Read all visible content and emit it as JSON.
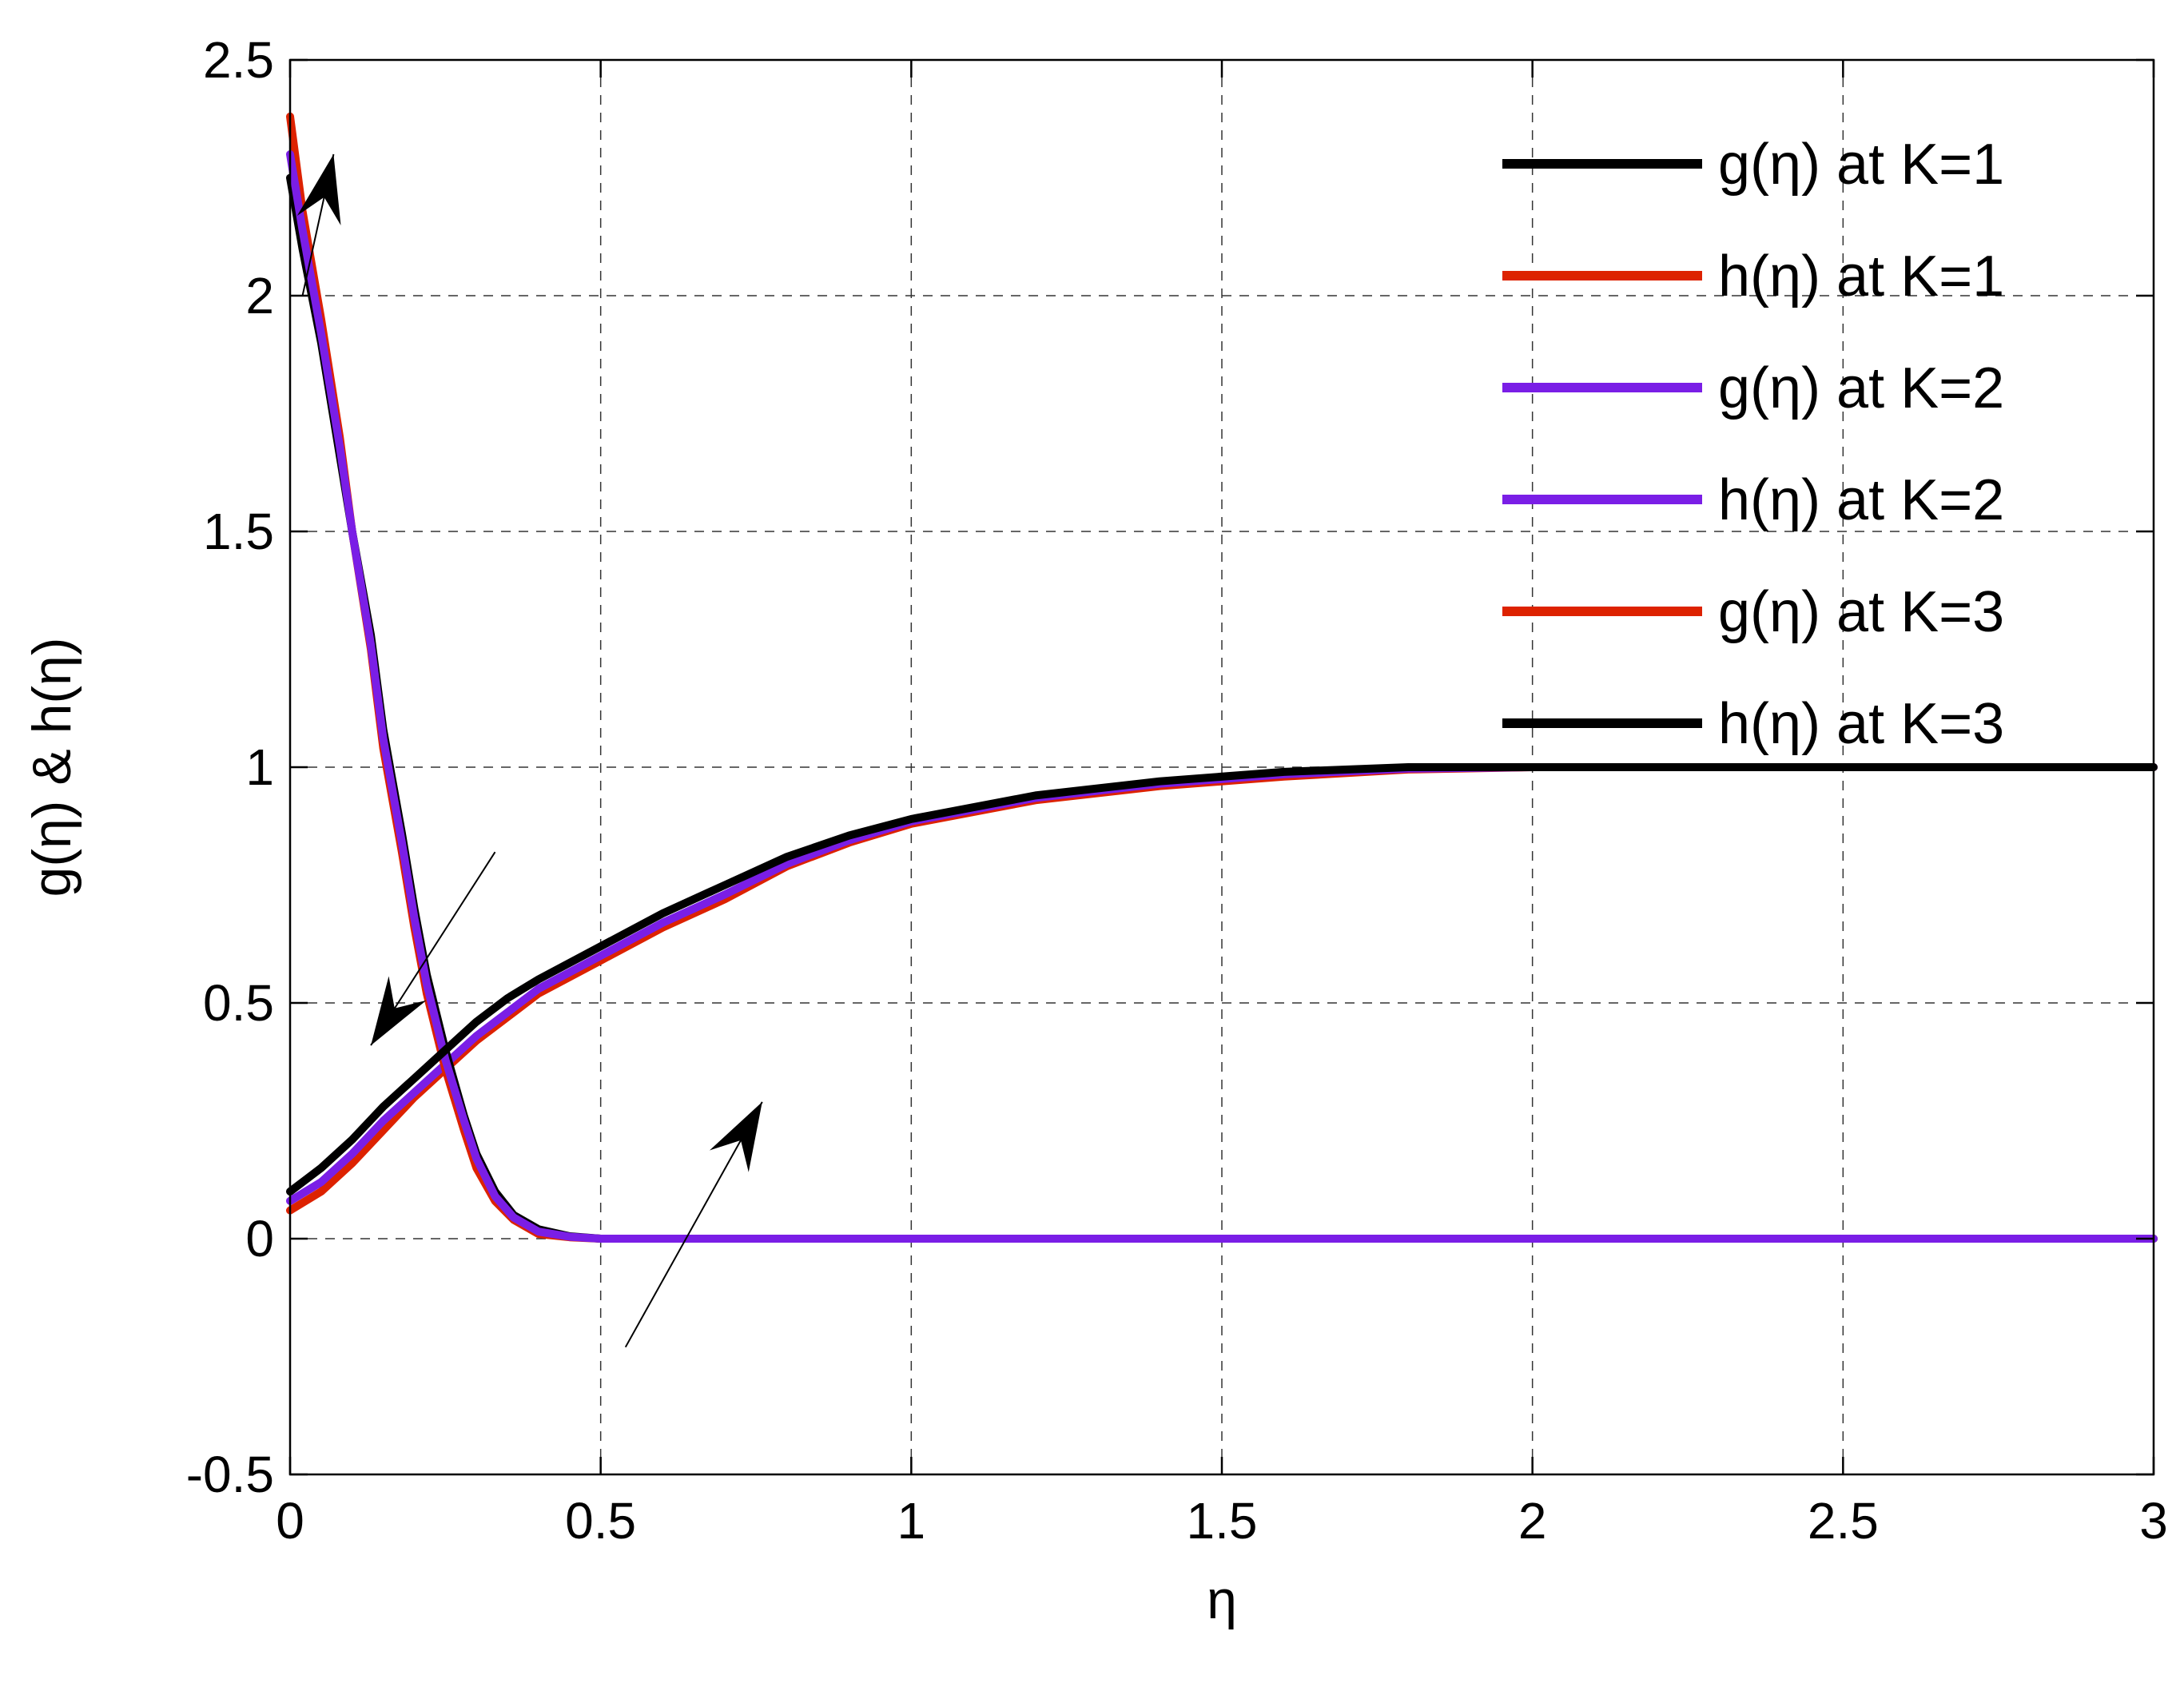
{
  "chart_data": {
    "type": "line",
    "xlabel": "η",
    "ylabel": "g(η) & h(η)",
    "xlim": [
      0,
      3
    ],
    "ylim": [
      -0.5,
      2.5
    ],
    "xticks": [
      0,
      0.5,
      1,
      1.5,
      2,
      2.5,
      3
    ],
    "yticks": [
      -0.5,
      0,
      0.5,
      1,
      1.5,
      2,
      2.5
    ],
    "xtick_labels": [
      "0",
      "0.5",
      "1",
      "1.5",
      "2",
      "2.5",
      "3"
    ],
    "ytick_labels": [
      "-0.5",
      "0",
      "0.5",
      "1",
      "1.5",
      "2",
      "2.5"
    ],
    "grid": true,
    "legend_position": "top-right",
    "series": [
      {
        "name": "g(η) at K=1",
        "color": "#000000",
        "x": [
          0,
          0.02,
          0.05,
          0.08,
          0.1,
          0.13,
          0.15,
          0.18,
          0.2,
          0.22,
          0.25,
          0.28,
          0.3,
          0.33,
          0.36,
          0.4,
          0.45,
          0.5,
          0.55,
          3
        ],
        "y": [
          2.25,
          2.1,
          1.9,
          1.66,
          1.5,
          1.28,
          1.08,
          0.86,
          0.7,
          0.56,
          0.4,
          0.26,
          0.18,
          0.1,
          0.05,
          0.02,
          0.005,
          0,
          0,
          0
        ]
      },
      {
        "name": "h(η) at K=1",
        "color": "#dd2200",
        "x": [
          0,
          0.05,
          0.1,
          0.15,
          0.2,
          0.25,
          0.3,
          0.35,
          0.4,
          0.5,
          0.6,
          0.7,
          0.8,
          0.9,
          1.0,
          1.2,
          1.4,
          1.6,
          1.8,
          2.0,
          3.0
        ],
        "y": [
          0.06,
          0.1,
          0.16,
          0.23,
          0.3,
          0.36,
          0.42,
          0.47,
          0.52,
          0.59,
          0.66,
          0.72,
          0.79,
          0.84,
          0.88,
          0.93,
          0.96,
          0.98,
          0.995,
          1.0,
          1.0
        ]
      },
      {
        "name": "g(η) at K=2",
        "color": "#7a1ee6",
        "x": [
          0,
          0.02,
          0.05,
          0.08,
          0.1,
          0.13,
          0.15,
          0.18,
          0.2,
          0.22,
          0.25,
          0.28,
          0.3,
          0.33,
          0.36,
          0.4,
          0.45,
          0.5,
          0.55,
          3
        ],
        "y": [
          2.3,
          2.14,
          1.92,
          1.68,
          1.5,
          1.26,
          1.06,
          0.84,
          0.68,
          0.54,
          0.38,
          0.25,
          0.17,
          0.09,
          0.045,
          0.015,
          0.004,
          0,
          0,
          0
        ]
      },
      {
        "name": "h(η) at K=2",
        "color": "#7a1ee6",
        "x": [
          0,
          0.05,
          0.1,
          0.15,
          0.2,
          0.25,
          0.3,
          0.35,
          0.4,
          0.5,
          0.6,
          0.7,
          0.8,
          0.9,
          1.0,
          1.2,
          1.4,
          1.6,
          1.8,
          2.0,
          3.0
        ],
        "y": [
          0.08,
          0.12,
          0.18,
          0.25,
          0.31,
          0.37,
          0.43,
          0.48,
          0.53,
          0.6,
          0.67,
          0.73,
          0.795,
          0.845,
          0.885,
          0.935,
          0.965,
          0.985,
          0.997,
          1.0,
          1.0
        ]
      },
      {
        "name": "g(η) at K=3",
        "color": "#dd2200",
        "x": [
          0,
          0.02,
          0.05,
          0.08,
          0.1,
          0.13,
          0.15,
          0.18,
          0.2,
          0.22,
          0.25,
          0.28,
          0.3,
          0.33,
          0.36,
          0.4,
          0.45,
          0.5,
          0.55,
          3
        ],
        "y": [
          2.38,
          2.18,
          1.95,
          1.7,
          1.5,
          1.25,
          1.04,
          0.82,
          0.66,
          0.52,
          0.36,
          0.23,
          0.15,
          0.08,
          0.04,
          0.01,
          0.003,
          0,
          0,
          0
        ]
      },
      {
        "name": "h(η) at K=3",
        "color": "#000000",
        "x": [
          0,
          0.05,
          0.1,
          0.15,
          0.2,
          0.25,
          0.3,
          0.35,
          0.4,
          0.5,
          0.6,
          0.7,
          0.8,
          0.9,
          1.0,
          1.2,
          1.4,
          1.6,
          1.8,
          2.0,
          3.0
        ],
        "y": [
          0.1,
          0.15,
          0.21,
          0.28,
          0.34,
          0.4,
          0.46,
          0.51,
          0.55,
          0.62,
          0.69,
          0.75,
          0.81,
          0.855,
          0.89,
          0.94,
          0.97,
          0.99,
          1.0,
          1.0,
          1.0
        ]
      }
    ],
    "annotations": [
      {
        "type": "arrow",
        "from": [
          0.02,
          2.0
        ],
        "to": [
          0.07,
          2.3
        ]
      },
      {
        "type": "arrow",
        "from": [
          0.33,
          0.82
        ],
        "to": [
          0.13,
          0.41
        ]
      },
      {
        "type": "arrow",
        "from": [
          0.54,
          -0.23
        ],
        "to": [
          0.76,
          0.29
        ]
      }
    ]
  }
}
